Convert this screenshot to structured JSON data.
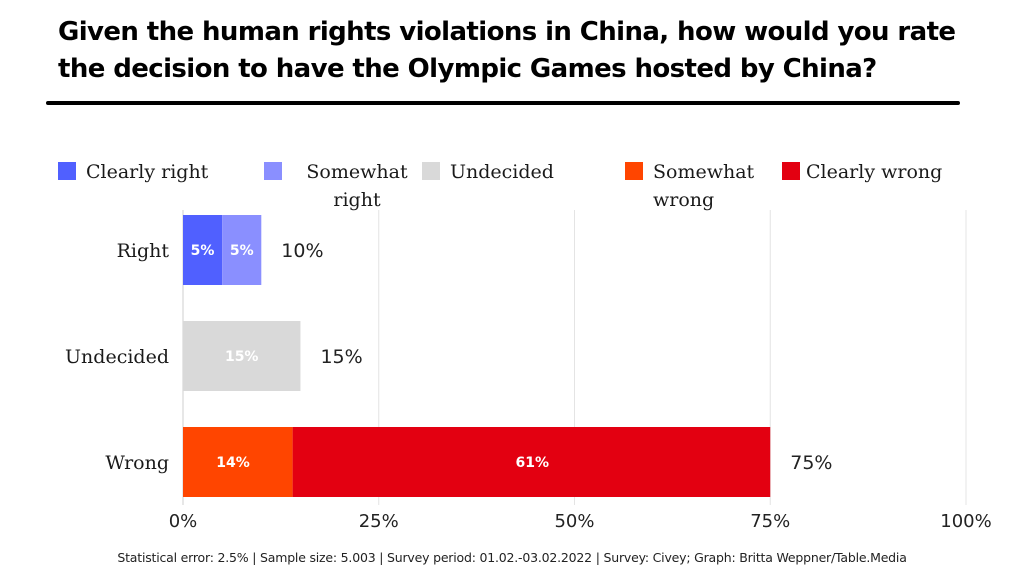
{
  "chart_data": {
    "type": "bar",
    "orientation": "horizontal",
    "stacked": true,
    "title": "Given the human rights violations in China, how would you rate the decision to have the Olympic Games hosted by China?",
    "categories": [
      "Right",
      "Undecided",
      "Wrong"
    ],
    "series": [
      {
        "name": "Clearly right",
        "color": "#5060ff",
        "values": [
          5,
          0,
          0
        ]
      },
      {
        "name": "Somewhat right",
        "color": "#8a8fff",
        "values": [
          5,
          0,
          0
        ]
      },
      {
        "name": "Undecided",
        "color": "#d9d9d9",
        "values": [
          0,
          15,
          0
        ]
      },
      {
        "name": "Somewhat wrong",
        "color": "#ff4500",
        "values": [
          0,
          0,
          14
        ]
      },
      {
        "name": "Clearly wrong",
        "color": "#e30011",
        "values": [
          0,
          0,
          61
        ]
      }
    ],
    "segment_labels": [
      [
        "5%",
        "5%"
      ],
      [
        "15%"
      ],
      [
        "14%",
        "61%"
      ]
    ],
    "totals": [
      10,
      15,
      75
    ],
    "total_labels": [
      "10%",
      "15%",
      "75%"
    ],
    "xlim": [
      0,
      100
    ],
    "xticks": [
      0,
      25,
      50,
      75,
      100
    ],
    "xtick_labels": [
      "0%",
      "25%",
      "50%",
      "75%",
      "100%"
    ],
    "xlabel": "",
    "ylabel": "",
    "grid": true,
    "legend_position": "top"
  },
  "legend": [
    {
      "label": "Clearly right",
      "color": "#5060ff"
    },
    {
      "label": "Somewhat right",
      "color": "#8a8fff"
    },
    {
      "label": "Undecided",
      "color": "#d9d9d9"
    },
    {
      "label": "Somewhat wrong",
      "color": "#ff4500"
    },
    {
      "label": "Clearly wrong",
      "color": "#e30011"
    }
  ],
  "footer": "Statistical error: 2.5% | Sample size: 5.003 | Survey period: 01.02.-03.02.2022  | Survey: Civey; Graph: Britta Weppner/Table.Media"
}
